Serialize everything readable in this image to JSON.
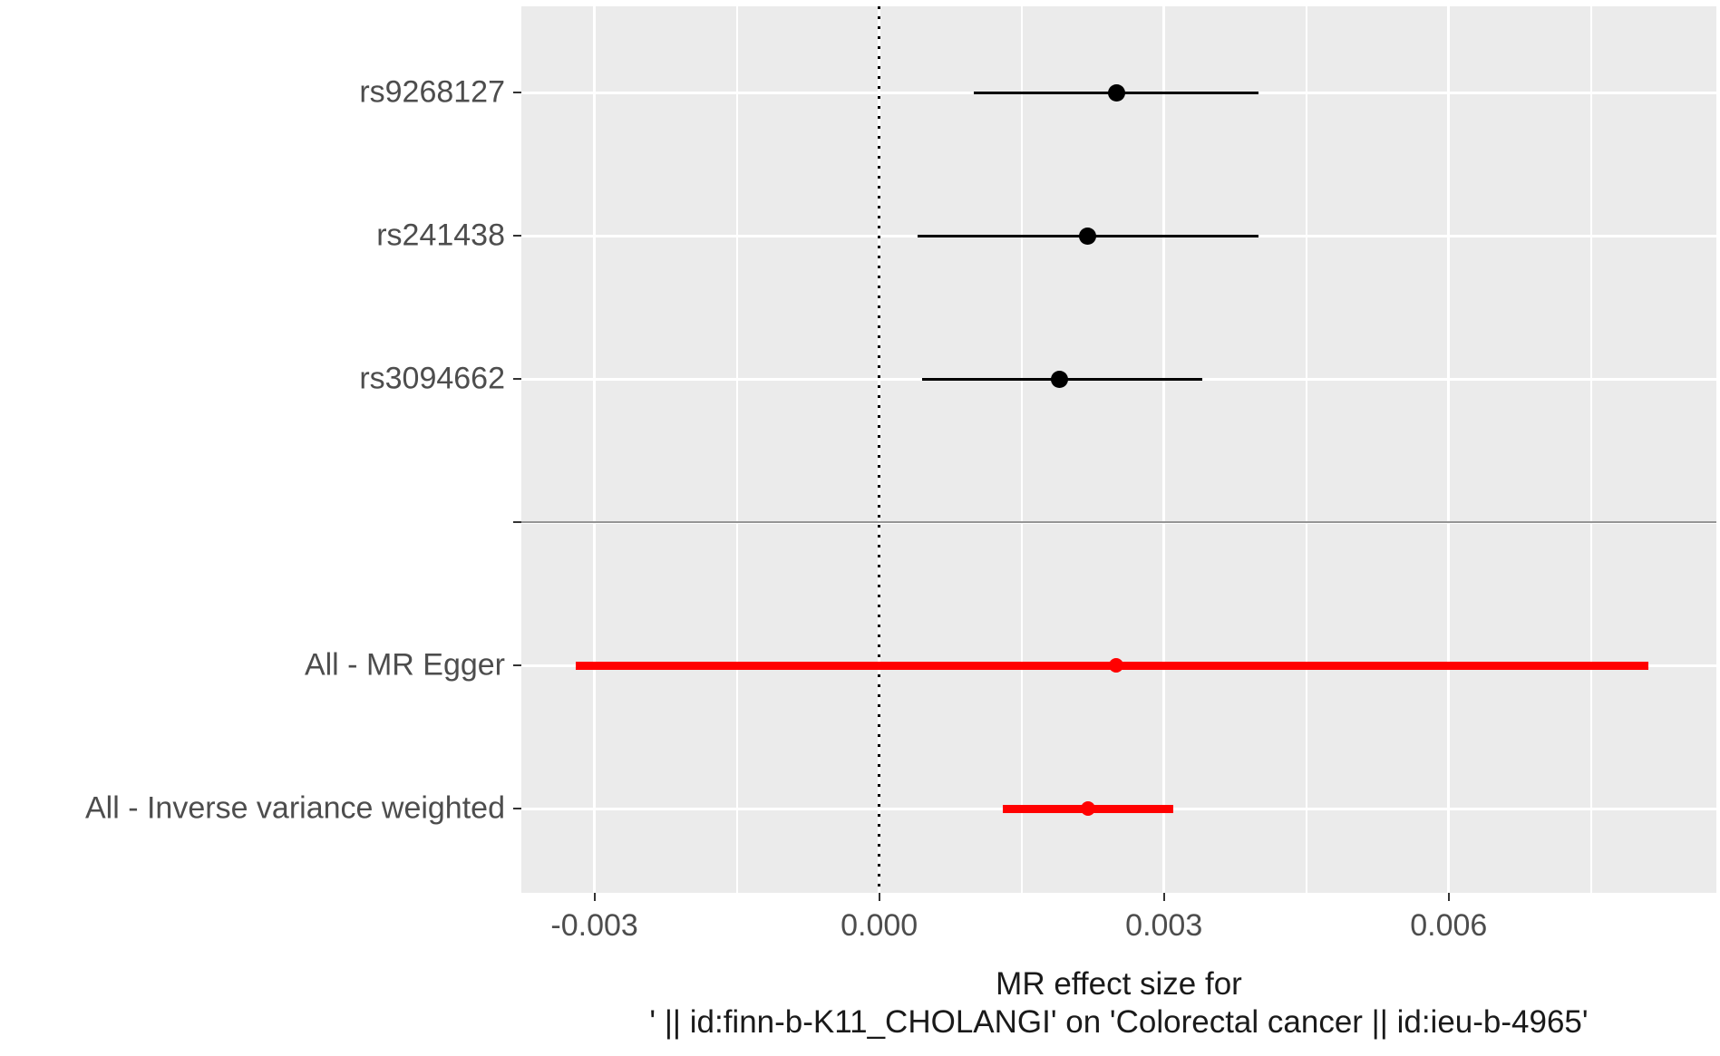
{
  "figure": {
    "background": "#ffffff",
    "panel_bg": "#ebebeb",
    "grid_color": "#ffffff",
    "axis_text_color": "#4d4d4d",
    "tick_color": "#333333",
    "separator_color": "#969696",
    "zero_line_color": "#000000",
    "snp_color": "#000000",
    "summary_color": "#ff0000"
  },
  "chart_data": {
    "type": "forest",
    "title": "",
    "xlabel_line1": "MR effect size for",
    "xlabel_line2": "' || id:finn-b-K11_CHOLANGI' on 'Colorectal cancer || id:ieu-b-4965'",
    "xlim": [
      -0.00377,
      0.00882
    ],
    "x_ticks": [
      -0.003,
      0,
      0.003,
      0.006
    ],
    "x_tick_labels": [
      "-0.003",
      "0.000",
      "0.003",
      "0.006"
    ],
    "x_minor_ticks": [
      -0.0015,
      0.0015,
      0.0045,
      0.0075
    ],
    "zero_line": 0,
    "grid": true,
    "legend": "none",
    "rows": [
      {
        "label": "rs9268127",
        "type": "snp",
        "estimate": 0.0025,
        "ci_low": 0.001,
        "ci_high": 0.004
      },
      {
        "label": "rs241438",
        "type": "snp",
        "estimate": 0.0022,
        "ci_low": 0.0004,
        "ci_high": 0.004
      },
      {
        "label": "rs3094662",
        "type": "snp",
        "estimate": 0.0019,
        "ci_low": 0.00045,
        "ci_high": 0.0034
      },
      {
        "label": "",
        "type": "separator"
      },
      {
        "label": "All - MR Egger",
        "type": "summary",
        "estimate": 0.0025,
        "ci_low": -0.0032,
        "ci_high": 0.0081
      },
      {
        "label": "All - Inverse variance weighted",
        "type": "summary",
        "estimate": 0.0022,
        "ci_low": 0.0013,
        "ci_high": 0.0031
      }
    ]
  }
}
